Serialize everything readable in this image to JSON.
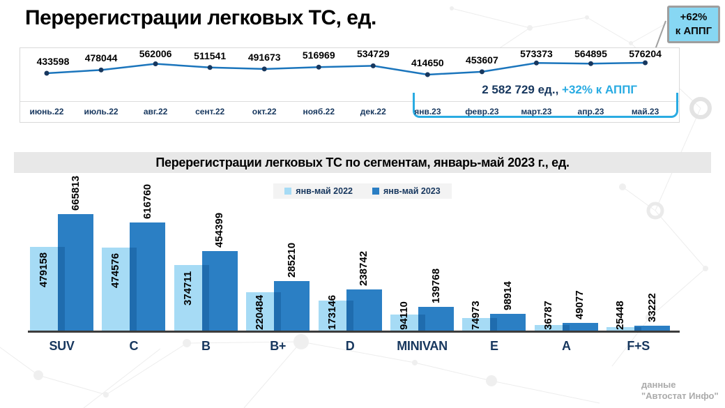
{
  "page_title": "Перерегистрации легковых ТС, ед.",
  "badge": {
    "percent": "+62%",
    "label": "к АППГ"
  },
  "source_note": {
    "line1": "данные",
    "line2": "\"Автостат Инфо\""
  },
  "colors": {
    "accent_cyan": "#29ABE2",
    "navy": "#17375E",
    "line_blue": "#1B75BC",
    "marker_navy": "#17375E",
    "bar_2022": "#A6DBF5",
    "bar_2023": "#2B7FC4",
    "bar_overlap": "#1F6CAE",
    "badge_bg": "#87D7F3",
    "band_bg": "#E8E8E8"
  },
  "chart_data": [
    {
      "type": "line",
      "title": "Перерегистрации легковых ТС, ед.",
      "x": [
        "июнь.22",
        "июль.22",
        "авг.22",
        "сент.22",
        "окт.22",
        "нояб.22",
        "дек.22",
        "янв.23",
        "февр.23",
        "март.23",
        "апр.23",
        "май.23"
      ],
      "values": [
        433598,
        478044,
        562006,
        511541,
        491673,
        516969,
        534729,
        414650,
        453607,
        573373,
        564895,
        576204
      ],
      "ylim": [
        400000,
        600000
      ],
      "grid": false,
      "legend_position": "none",
      "annotation": {
        "total": "2 582 729 ед.,",
        "change": "+32% к АППГ",
        "bracket_from": "янв.23",
        "bracket_to": "май.23"
      }
    },
    {
      "type": "bar",
      "title": "Перерегистрации легковых ТС по сегментам, январь-май 2023 г., ед.",
      "categories": [
        "SUV",
        "C",
        "B",
        "B+",
        "D",
        "MINIVAN",
        "E",
        "A",
        "F+S"
      ],
      "series": [
        {
          "name": "янв-май 2022",
          "color": "#A6DBF5",
          "values": [
            479158,
            474576,
            374711,
            220484,
            173146,
            94110,
            74973,
            36787,
            25448
          ]
        },
        {
          "name": "янв-май 2023",
          "color": "#2B7FC4",
          "values": [
            665813,
            616760,
            454399,
            285210,
            238742,
            139768,
            98914,
            49077,
            33222
          ]
        }
      ],
      "ylim": [
        0,
        700000
      ],
      "grid": false,
      "legend_position": "top-center",
      "value_labels": "rotated-90"
    }
  ]
}
